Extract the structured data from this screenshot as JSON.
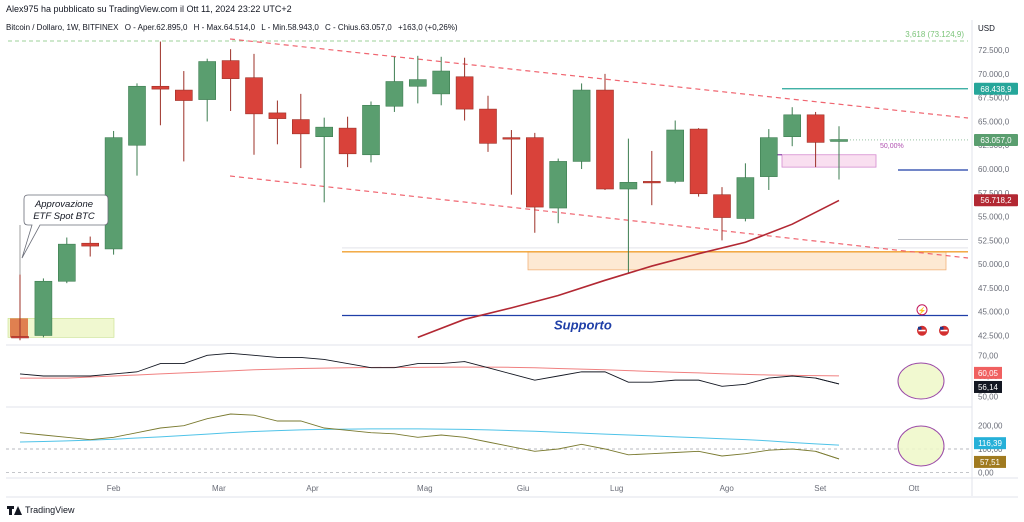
{
  "header": {
    "published": "Alex975 ha pubblicato su TradingView.com il Ott 11, 2024 23:22 UTC+2"
  },
  "legend": {
    "symbol": "Bitcoin / Dollaro, 1W, BITFINEX",
    "open": "O - Aper.62.895,0",
    "high": "H - Max.64.514,0",
    "low": "L - Min.58.943,0",
    "close": "C - Chius.63.057,0",
    "change": "+163,0 (+0,26%)"
  },
  "branding": {
    "name": "TradingView"
  },
  "annotations": {
    "etf_line1": "Approvazione",
    "etf_line2": "ETF Spot BTC",
    "support": "Supporto",
    "fib_top": "3,618 (73.124,9)",
    "fib_mid": "50,00%"
  },
  "colors": {
    "bull": "#5a9e6f",
    "bear": "#d9423a",
    "ma": "#b22833",
    "channel": "#f06570",
    "support": "#1f3fa8",
    "orange": "#f0a030",
    "teal": "#26a69a",
    "rsi": "#131722",
    "rsi_ma": "#f08080",
    "ind2": "#7a7a30",
    "ind2_ma": "#4fc3e8"
  },
  "chart_data": {
    "type": "candlestick",
    "symbol": "Bitcoin / Dollaro",
    "interval": "1W",
    "exchange": "BITFINEX",
    "currency": "USD",
    "y_axis_label": "USD",
    "x_labels": [
      "Feb",
      "Mar",
      "Apr",
      "Mag",
      "Giu",
      "Lug",
      "Ago",
      "Set",
      "Ott"
    ],
    "price_ticks": [
      "72.500,0",
      "70.000,0",
      "67.500,0",
      "65.000,0",
      "62.500,0",
      "60.000,0",
      "57.500,0",
      "55.000,0",
      "52.500,0",
      "50.000,0",
      "47.500,0",
      "45.000,0",
      "42.500,0"
    ],
    "ylim": [
      41500,
      74300
    ],
    "candles": [
      {
        "o": 42400,
        "h": 48900,
        "l": 42000,
        "c": 42300
      },
      {
        "o": 42500,
        "h": 48500,
        "l": 42300,
        "c": 48200
      },
      {
        "o": 48200,
        "h": 52800,
        "l": 48000,
        "c": 52100
      },
      {
        "o": 52200,
        "h": 52900,
        "l": 50800,
        "c": 51900
      },
      {
        "o": 51600,
        "h": 64000,
        "l": 51000,
        "c": 63300
      },
      {
        "o": 62500,
        "h": 69000,
        "l": 59300,
        "c": 68700
      },
      {
        "o": 68700,
        "h": 73400,
        "l": 64600,
        "c": 68400
      },
      {
        "o": 68300,
        "h": 70300,
        "l": 60800,
        "c": 67200
      },
      {
        "o": 67300,
        "h": 71600,
        "l": 65000,
        "c": 71300
      },
      {
        "o": 71400,
        "h": 72600,
        "l": 66100,
        "c": 69500
      },
      {
        "o": 69600,
        "h": 72100,
        "l": 61500,
        "c": 65800
      },
      {
        "o": 65900,
        "h": 67200,
        "l": 62600,
        "c": 65300
      },
      {
        "o": 65200,
        "h": 67900,
        "l": 60100,
        "c": 63700
      },
      {
        "o": 63400,
        "h": 65400,
        "l": 56500,
        "c": 64400
      },
      {
        "o": 64300,
        "h": 65500,
        "l": 60200,
        "c": 61600
      },
      {
        "o": 61500,
        "h": 67100,
        "l": 60700,
        "c": 66700
      },
      {
        "o": 66600,
        "h": 71800,
        "l": 66000,
        "c": 69200
      },
      {
        "o": 68700,
        "h": 71900,
        "l": 66900,
        "c": 69400
      },
      {
        "o": 67900,
        "h": 71800,
        "l": 66700,
        "c": 70300
      },
      {
        "o": 69700,
        "h": 71700,
        "l": 65100,
        "c": 66300
      },
      {
        "o": 66300,
        "h": 67700,
        "l": 61800,
        "c": 62700
      },
      {
        "o": 63300,
        "h": 64100,
        "l": 57300,
        "c": 63200
      },
      {
        "o": 63300,
        "h": 63800,
        "l": 53300,
        "c": 56000
      },
      {
        "o": 55900,
        "h": 61100,
        "l": 54300,
        "c": 60800
      },
      {
        "o": 60800,
        "h": 69000,
        "l": 60000,
        "c": 68300
      },
      {
        "o": 68300,
        "h": 70000,
        "l": 57800,
        "c": 57900
      },
      {
        "o": 57900,
        "h": 63200,
        "l": 49100,
        "c": 58600
      },
      {
        "o": 58700,
        "h": 61900,
        "l": 56200,
        "c": 58600
      },
      {
        "o": 58700,
        "h": 65100,
        "l": 58500,
        "c": 64100
      },
      {
        "o": 64200,
        "h": 64300,
        "l": 57100,
        "c": 57400
      },
      {
        "o": 57300,
        "h": 58100,
        "l": 52500,
        "c": 54900
      },
      {
        "o": 54800,
        "h": 60600,
        "l": 54500,
        "c": 59100
      },
      {
        "o": 59200,
        "h": 64200,
        "l": 57800,
        "c": 63300
      },
      {
        "o": 63400,
        "h": 66500,
        "l": 62400,
        "c": 65700
      },
      {
        "o": 65700,
        "h": 66000,
        "l": 60200,
        "c": 62800
      },
      {
        "o": 62900,
        "h": 64500,
        "l": 58900,
        "c": 63100
      }
    ],
    "moving_average_200": [
      [
        17,
        42300
      ],
      [
        19,
        44200
      ],
      [
        21,
        45400
      ],
      [
        23,
        46700
      ],
      [
        25,
        48300
      ],
      [
        27,
        49800
      ],
      [
        29,
        51100
      ],
      [
        31,
        52300
      ],
      [
        33,
        54200
      ],
      [
        35,
        56700
      ]
    ],
    "price_labels": [
      {
        "value": 68438.9,
        "text": "68.438,9",
        "color": "teal"
      },
      {
        "value": 63057.0,
        "text": "63.057,0",
        "color": "bull"
      },
      {
        "value": 56718.2,
        "text": "56.718,2",
        "color": "ma"
      }
    ],
    "levels": {
      "support": 44600,
      "orange_zone": [
        49400,
        51300
      ],
      "etf_zone": [
        42300,
        44300
      ],
      "teal_level": 68438.9,
      "blue_level": 59900,
      "dashed_top": 73124.9
    },
    "rsi": {
      "ticks": [
        "70,00",
        "60,00",
        "50,00"
      ],
      "ylim": [
        45,
        75
      ],
      "values": [
        61,
        60,
        60,
        60,
        61,
        62,
        66,
        66,
        70,
        71,
        70,
        69,
        69,
        68,
        66,
        64,
        64,
        66,
        66,
        67,
        64,
        61,
        58,
        60,
        62,
        62,
        57,
        57,
        58,
        58,
        55,
        56,
        59,
        60,
        59,
        56.14
      ],
      "ma_values": [
        59,
        59,
        59,
        59.5,
        60,
        60.5,
        61,
        61.5,
        62,
        62.5,
        63,
        63.3,
        63.6,
        63.8,
        64,
        64.1,
        64.2,
        64.2,
        64.3,
        64.3,
        64.3,
        64.2,
        64,
        63.6,
        63.3,
        63,
        62.6,
        62.2,
        61.8,
        61.5,
        61.1,
        60.8,
        60.5,
        60.3,
        60.2,
        60.05
      ],
      "labels": [
        "60,05",
        "56,14"
      ]
    },
    "oscillator": {
      "ticks": [
        "200,00",
        "100,00",
        "0,00"
      ],
      "ylim": [
        -20,
        280
      ],
      "values": [
        170,
        160,
        150,
        140,
        150,
        170,
        190,
        200,
        230,
        250,
        245,
        220,
        220,
        190,
        180,
        170,
        165,
        150,
        160,
        150,
        130,
        110,
        90,
        100,
        120,
        100,
        75,
        80,
        85,
        90,
        70,
        80,
        95,
        100,
        90,
        57.51
      ],
      "ma_values": [
        130,
        132,
        135,
        138,
        142,
        147,
        152,
        158,
        164,
        170,
        175,
        179,
        182,
        184,
        185,
        186,
        186,
        186,
        185,
        184,
        182,
        179,
        176,
        172,
        168,
        164,
        160,
        156,
        152,
        148,
        144,
        140,
        135,
        128,
        122,
        116.39
      ],
      "labels": [
        "116,39",
        "57,51"
      ]
    }
  }
}
